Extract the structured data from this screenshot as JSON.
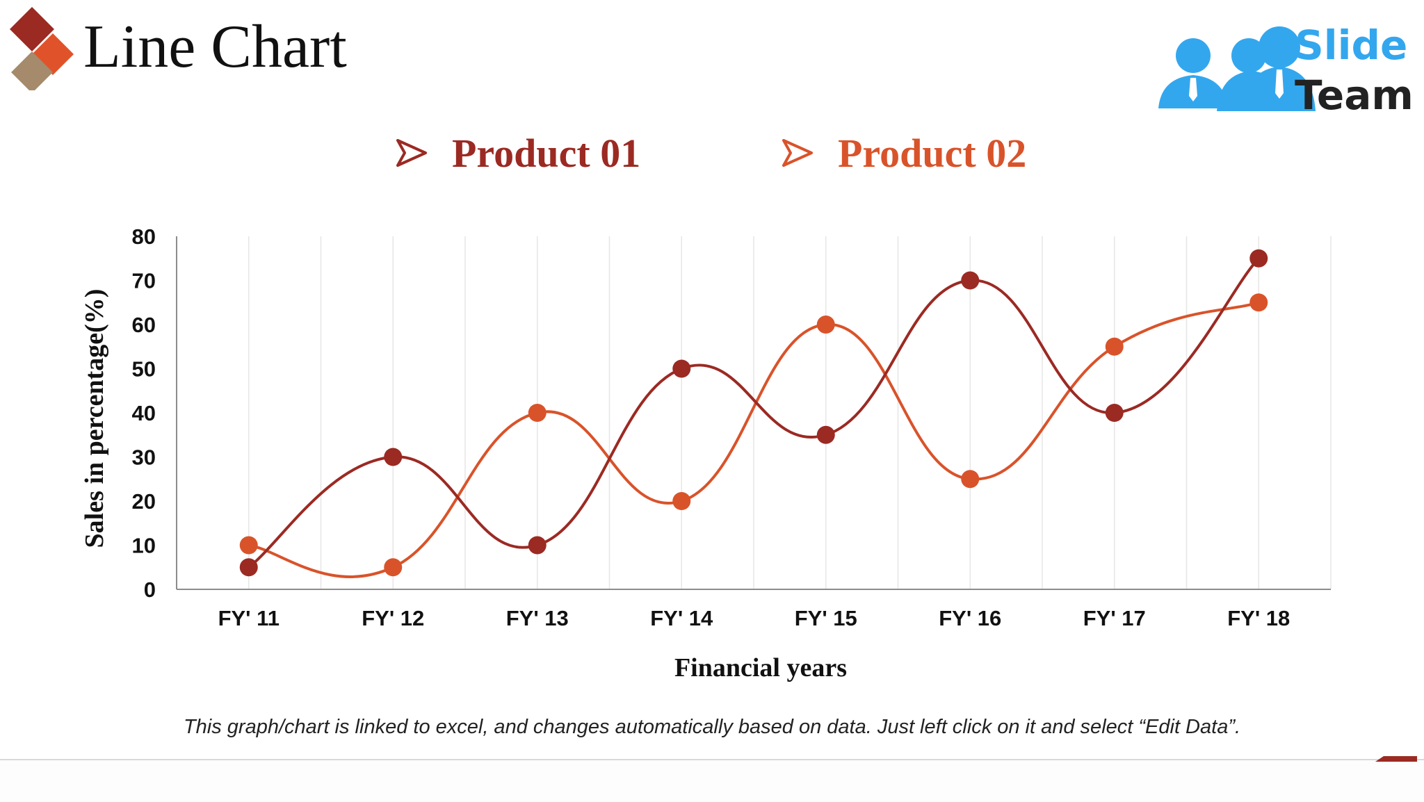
{
  "title": "Line Chart",
  "brand": {
    "word1": "Slide",
    "word2": "Team"
  },
  "footnote": "This graph/chart is linked to excel, and changes automatically based on data. Just left click on it and select “Edit Data”.",
  "colors": {
    "product01": "#9b2a23",
    "product02": "#d9532a",
    "grid": "#e6e6e6",
    "axis": "#8c8c8c"
  },
  "chart_data": {
    "type": "line",
    "categories": [
      "FY' 11",
      "FY' 12",
      "FY' 13",
      "FY' 14",
      "FY' 15",
      "FY' 16",
      "FY' 17",
      "FY' 18"
    ],
    "series": [
      {
        "name": "Product 01",
        "values": [
          5,
          30,
          10,
          50,
          35,
          70,
          40,
          75
        ]
      },
      {
        "name": "Product 02",
        "values": [
          10,
          5,
          40,
          20,
          60,
          25,
          55,
          65
        ]
      }
    ],
    "xlabel": "Financial years",
    "ylabel": "Sales in percentage(%)",
    "ylim": [
      0,
      80
    ],
    "yticks": [
      "0",
      "10",
      "20",
      "30",
      "40",
      "50",
      "60",
      "70",
      "80"
    ],
    "grid": "vertical",
    "legend": "top",
    "smooth": true
  }
}
